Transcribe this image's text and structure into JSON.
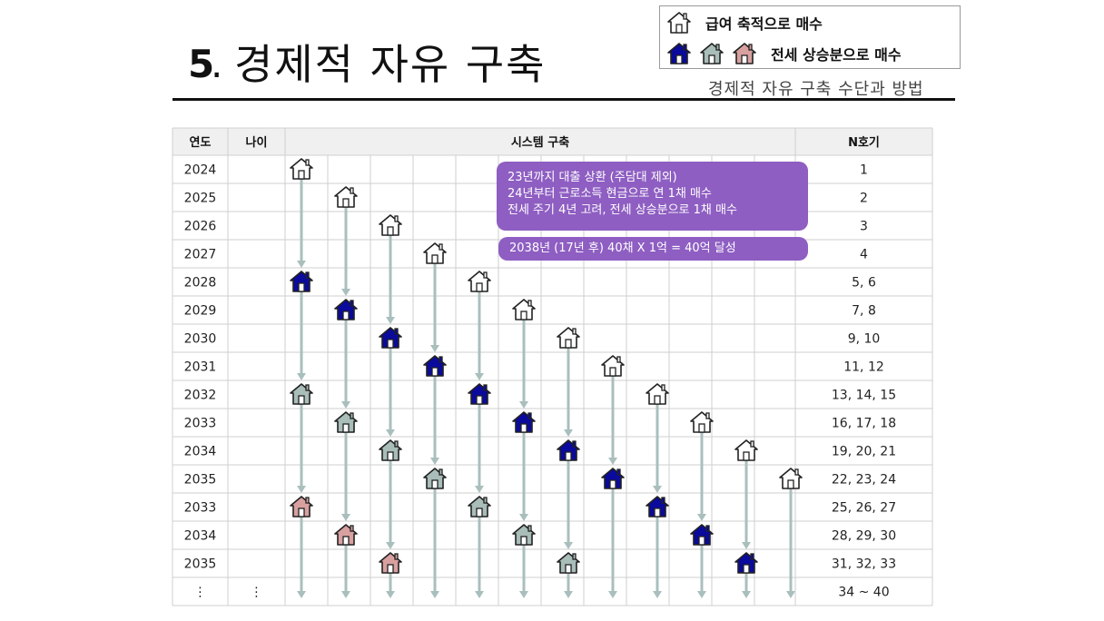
{
  "header": {
    "title_number": "5",
    "title_dot": ".",
    "title_text": "경제적 자유 구축",
    "subtitle": "경제적 자유 구축 수단과 방법"
  },
  "legend": {
    "salary_label": "급여 축적으로 매수",
    "jeonse_label": "전세 상승분으로 매수"
  },
  "table": {
    "headers": {
      "year": "연도",
      "age": "나이",
      "system": "시스템 구축",
      "nth": "N호기"
    },
    "rows": [
      {
        "year": "2024",
        "age": "",
        "nth": "1"
      },
      {
        "year": "2025",
        "age": "",
        "nth": "2"
      },
      {
        "year": "2026",
        "age": "",
        "nth": "3"
      },
      {
        "year": "2027",
        "age": "",
        "nth": "4"
      },
      {
        "year": "2028",
        "age": "",
        "nth": "5, 6"
      },
      {
        "year": "2029",
        "age": "",
        "nth": "7, 8"
      },
      {
        "year": "2030",
        "age": "",
        "nth": "9, 10"
      },
      {
        "year": "2031",
        "age": "",
        "nth": "11, 12"
      },
      {
        "year": "2032",
        "age": "",
        "nth": "13, 14, 15"
      },
      {
        "year": "2033",
        "age": "",
        "nth": "16, 17, 18"
      },
      {
        "year": "2034",
        "age": "",
        "nth": "19, 20, 21"
      },
      {
        "year": "2035",
        "age": "",
        "nth": "22, 23, 24"
      },
      {
        "year": "2033",
        "age": "",
        "nth": "25, 26, 27"
      },
      {
        "year": "2034",
        "age": "",
        "nth": "28, 29, 30"
      },
      {
        "year": "2035",
        "age": "",
        "nth": "31, 32, 33"
      },
      {
        "year": "⋮",
        "age": "⋮",
        "nth": "34 ~ 40"
      }
    ],
    "house_columns": [
      [
        "salary",
        null,
        null,
        null,
        "jeonse1",
        null,
        null,
        null,
        "jeonse2",
        null,
        null,
        null,
        "jeonse3"
      ],
      [
        null,
        "salary",
        null,
        null,
        null,
        "jeonse1",
        null,
        null,
        null,
        "jeonse2",
        null,
        null,
        null,
        "jeonse3"
      ],
      [
        null,
        null,
        "salary",
        null,
        null,
        null,
        "jeonse1",
        null,
        null,
        null,
        "jeonse2",
        null,
        null,
        null,
        "jeonse3"
      ],
      [
        null,
        null,
        null,
        "salary",
        null,
        null,
        null,
        "jeonse1",
        null,
        null,
        null,
        "jeonse2"
      ],
      [
        null,
        null,
        null,
        null,
        "salary",
        null,
        null,
        null,
        "jeonse1",
        null,
        null,
        null,
        "jeonse2"
      ],
      [
        null,
        null,
        null,
        null,
        null,
        "salary",
        null,
        null,
        null,
        "jeonse1",
        null,
        null,
        null,
        "jeonse2"
      ],
      [
        null,
        null,
        null,
        null,
        null,
        null,
        "salary",
        null,
        null,
        null,
        "jeonse1",
        null,
        null,
        null,
        "jeonse2"
      ],
      [
        null,
        null,
        null,
        null,
        null,
        null,
        null,
        "salary",
        null,
        null,
        null,
        "jeonse1"
      ],
      [
        null,
        null,
        null,
        null,
        null,
        null,
        null,
        null,
        "salary",
        null,
        null,
        null,
        "jeonse1"
      ],
      [
        null,
        null,
        null,
        null,
        null,
        null,
        null,
        null,
        null,
        "salary",
        null,
        null,
        null,
        "jeonse1"
      ],
      [
        null,
        null,
        null,
        null,
        null,
        null,
        null,
        null,
        null,
        null,
        "salary",
        null,
        null,
        null,
        "jeonse1"
      ],
      [
        null,
        null,
        null,
        null,
        null,
        null,
        null,
        null,
        null,
        null,
        null,
        "salary"
      ]
    ]
  },
  "callouts": {
    "plan_line1": "23년까지 대출 상환 (주담대 제외)",
    "plan_line2": "24년부터 근로소득 현금으로 연 1채 매수",
    "plan_line3": "전세 주기 4년 고려, 전세 상승분으로 1채 매수",
    "goal": "2038년 (17년  후) 40채 X 1억 = 40억 달성"
  },
  "colors": {
    "salary": "#ffffff",
    "jeonse1": "#0a0a9c",
    "jeonse2": "#a9bdb9",
    "jeonse3": "#d9a0a0",
    "arrow": "#a9bfbd",
    "callout": "#8e5ec2"
  },
  "icons": {
    "house": "house-icon"
  }
}
